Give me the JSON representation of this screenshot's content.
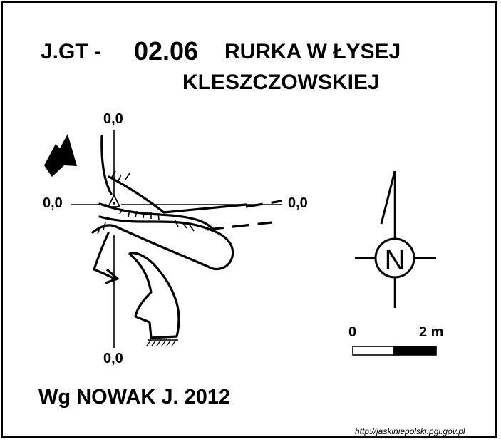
{
  "header": {
    "code_prefix": "J.GT -",
    "code_number": "02.06",
    "cave_name_line1": "RURKA W ŁYSEJ",
    "cave_name_line2": "KLESZCZOWSKIEJ"
  },
  "axes": {
    "top": "0,0",
    "left": "0,0",
    "right": "0,0",
    "bottom": "0,0"
  },
  "compass": {
    "label": "N",
    "icon": "north-compass-icon"
  },
  "scale_bar": {
    "start_label": "0",
    "end_label": "2 m"
  },
  "author": "Wg NOWAK J. 2012",
  "source": "http://jaskiniepolski.pgi.gov.pl",
  "colors": {
    "ink": "#000000",
    "paper": "#ffffff"
  }
}
